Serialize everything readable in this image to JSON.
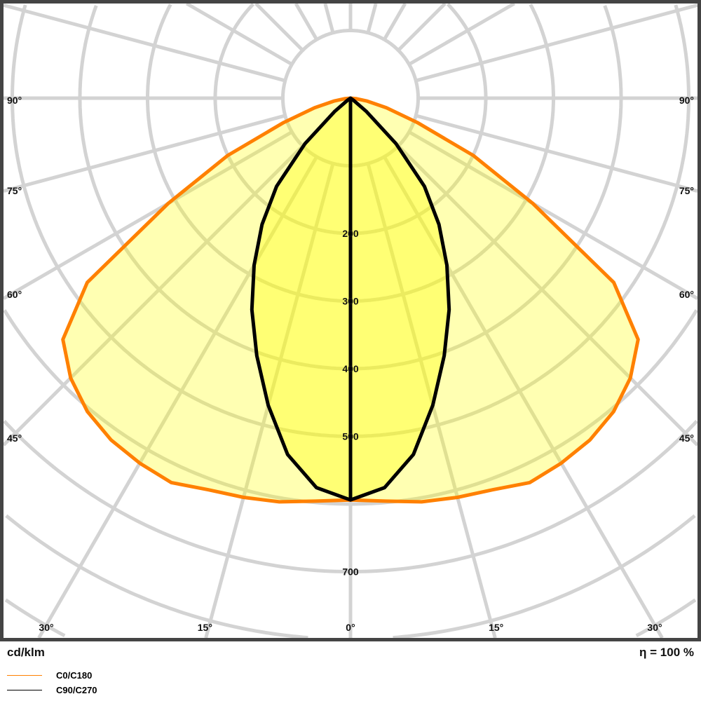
{
  "chart_data": {
    "type": "polar",
    "unit_label": "cd/klm",
    "efficiency_label": "η = 100 %",
    "radial_tick_labels": [
      "200",
      "300",
      "400",
      "500",
      "700"
    ],
    "radial_ticks": [
      200,
      300,
      400,
      500,
      700
    ],
    "radial_grid_step": 100,
    "angle_grid_step": 15,
    "angle_labels_side": [
      {
        "text": "90°",
        "angle": 90
      },
      {
        "text": "75°",
        "angle": 75
      },
      {
        "text": "60°",
        "angle": 60
      },
      {
        "text": "45°",
        "angle": 45
      }
    ],
    "angle_labels_bottom": [
      {
        "text": "30°",
        "angle": -30
      },
      {
        "text": "15°",
        "angle": -15
      },
      {
        "text": "0°",
        "angle": 0
      },
      {
        "text": "15°",
        "angle": 15
      },
      {
        "text": "30°",
        "angle": 30
      }
    ],
    "grid": true,
    "angles": [
      0,
      5,
      10,
      15,
      20,
      25,
      30,
      35,
      40,
      45,
      50,
      55,
      60,
      65,
      70,
      75,
      80,
      85,
      90
    ],
    "series": [
      {
        "name": "C0/C180",
        "color": "#ff8000",
        "values": [
          594,
          598,
          606,
          611,
          616,
          627,
          623,
          617,
          605,
          585,
          555,
          475,
          311,
          200,
          105,
          55,
          25,
          8,
          0
        ]
      },
      {
        "name": "C90/C270",
        "color": "#000000",
        "values": [
          594,
          578,
          535,
          470,
          405,
          345,
          285,
          228,
          170,
          95,
          30,
          5,
          0,
          0,
          0,
          0,
          0,
          0,
          0
        ]
      }
    ],
    "fill_color": "#ffff00"
  }
}
